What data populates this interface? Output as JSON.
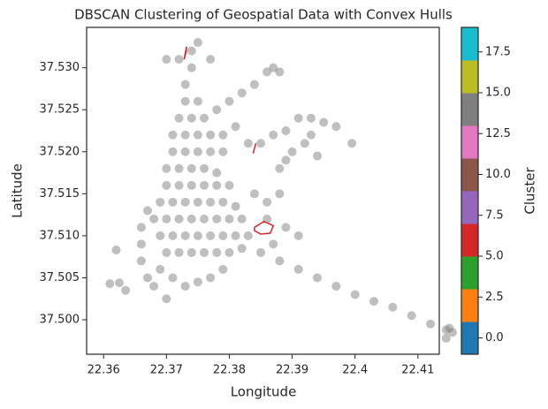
{
  "chart_data": {
    "type": "scatter",
    "title": "DBSCAN Clustering of Geospatial Data with Convex Hulls",
    "x_label": "Longitude",
    "y_label": "Latitude",
    "color": "#7f7f7f",
    "x": [
      22.369,
      22.371,
      22.373,
      22.375,
      22.377,
      22.379,
      22.37,
      22.372,
      22.374,
      22.376,
      22.378,
      22.38,
      22.382,
      22.369,
      22.371,
      22.373,
      22.375,
      22.377,
      22.379,
      22.381,
      22.383,
      22.368,
      22.37,
      22.372,
      22.374,
      22.376,
      22.378,
      22.38,
      22.382,
      22.369,
      22.371,
      22.373,
      22.375,
      22.377,
      22.379,
      22.381,
      22.37,
      22.372,
      22.374,
      22.376,
      22.378,
      22.38,
      22.37,
      22.372,
      22.374,
      22.376,
      22.378,
      22.371,
      22.373,
      22.375,
      22.377,
      22.379,
      22.371,
      22.373,
      22.375,
      22.377,
      22.379,
      22.372,
      22.374,
      22.376,
      22.378,
      22.373,
      22.375,
      22.373,
      22.374,
      22.372,
      22.374,
      22.375,
      22.37,
      22.377,
      22.38,
      22.382,
      22.384,
      22.386,
      22.387,
      22.388,
      22.381,
      22.383,
      22.385,
      22.387,
      22.389,
      22.391,
      22.393,
      22.395,
      22.397,
      22.393,
      22.392,
      22.39,
      22.389,
      22.388,
      22.3995,
      22.394,
      22.384,
      22.386,
      22.388,
      22.386,
      22.389,
      22.391,
      22.387,
      22.367,
      22.366,
      22.366,
      22.366,
      22.367,
      22.368,
      22.37,
      22.361,
      22.3625,
      22.362,
      22.3635,
      22.385,
      22.388,
      22.391,
      22.394,
      22.397,
      22.4,
      22.403,
      22.406,
      22.409,
      22.412,
      22.415,
      22.4155,
      22.4145,
      22.4145
    ],
    "values": [
      37.506,
      37.505,
      37.504,
      37.5045,
      37.505,
      37.506,
      37.508,
      37.508,
      37.508,
      37.508,
      37.508,
      37.508,
      37.5085,
      37.51,
      37.51,
      37.51,
      37.51,
      37.51,
      37.51,
      37.51,
      37.51,
      37.512,
      37.512,
      37.512,
      37.512,
      37.512,
      37.512,
      37.512,
      37.512,
      37.514,
      37.514,
      37.514,
      37.514,
      37.514,
      37.514,
      37.5135,
      37.516,
      37.516,
      37.516,
      37.516,
      37.516,
      37.516,
      37.518,
      37.518,
      37.518,
      37.518,
      37.5175,
      37.52,
      37.52,
      37.52,
      37.52,
      37.52,
      37.522,
      37.522,
      37.522,
      37.522,
      37.522,
      37.524,
      37.524,
      37.524,
      37.525,
      37.526,
      37.526,
      37.528,
      37.53,
      37.531,
      37.532,
      37.533,
      37.531,
      37.531,
      37.526,
      37.527,
      37.528,
      37.5295,
      37.53,
      37.5295,
      37.523,
      37.521,
      37.521,
      37.522,
      37.5225,
      37.524,
      37.524,
      37.5235,
      37.523,
      37.522,
      37.521,
      37.52,
      37.519,
      37.518,
      37.521,
      37.5195,
      37.515,
      37.514,
      37.515,
      37.512,
      37.511,
      37.51,
      37.509,
      37.513,
      37.511,
      37.509,
      37.507,
      37.505,
      37.504,
      37.5025,
      37.5043,
      37.5044,
      37.5083,
      37.5035,
      37.508,
      37.507,
      37.506,
      37.505,
      37.504,
      37.503,
      37.5022,
      37.5015,
      37.5005,
      37.4995,
      37.499,
      37.4985,
      37.4978,
      37.4988
    ],
    "hulls": [
      {
        "color": "#d62728",
        "x": [
          22.384,
          22.3855,
          22.387,
          22.3865,
          22.385,
          22.384
        ],
        "y": [
          37.511,
          37.5117,
          37.5112,
          37.5103,
          37.5102,
          37.5106
        ]
      },
      {
        "color": "#d62728",
        "x": [
          22.3728,
          22.3732,
          22.3731
        ],
        "y": [
          37.531,
          37.5325,
          37.5318
        ]
      },
      {
        "color": "#d62728",
        "x": [
          22.3838,
          22.3842,
          22.384
        ],
        "y": [
          37.5198,
          37.521,
          37.5204
        ]
      }
    ],
    "xlim": [
      22.3573,
      22.4134
    ],
    "ylim": [
      37.4959,
      37.5348
    ],
    "xticks": [
      22.36,
      22.37,
      22.38,
      22.39,
      22.4,
      22.41
    ],
    "yticks": [
      {
        "value": 37.5,
        "label": "37.500"
      },
      37.505,
      {
        "value": 37.51,
        "label": "37.510"
      },
      37.515,
      {
        "value": 37.52,
        "label": "37.520"
      },
      37.525,
      {
        "value": 37.53,
        "label": "37.530"
      }
    ],
    "colorbar": {
      "label": "Cluster",
      "lim": [
        -1,
        19
      ],
      "colors": [
        "#1f77b4",
        "#ff7f0e",
        "#2ca02c",
        "#d62728",
        "#9467bd",
        "#8c564b",
        "#e377c2",
        "#7f7f7f",
        "#bcbd22",
        "#17becf"
      ],
      "ticks": [
        {
          "value": 0,
          "label": "0.0"
        },
        2.5,
        {
          "value": 5,
          "label": "5.0"
        },
        7.5,
        {
          "value": 10,
          "label": "10.0"
        },
        12.5,
        {
          "value": 15,
          "label": "15.0"
        },
        17.5
      ]
    }
  }
}
